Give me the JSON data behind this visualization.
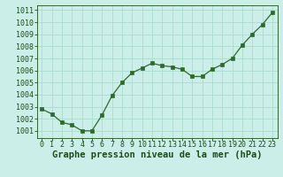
{
  "x": [
    0,
    1,
    2,
    3,
    4,
    5,
    6,
    7,
    8,
    9,
    10,
    11,
    12,
    13,
    14,
    15,
    16,
    17,
    18,
    19,
    20,
    21,
    22,
    23
  ],
  "y": [
    1002.8,
    1002.4,
    1001.7,
    1001.5,
    1001.0,
    1001.0,
    1002.3,
    1003.9,
    1005.0,
    1005.8,
    1006.2,
    1006.6,
    1006.4,
    1006.3,
    1006.1,
    1005.5,
    1005.5,
    1006.1,
    1006.5,
    1007.0,
    1008.1,
    1009.0,
    1009.8,
    1010.8
  ],
  "line_color": "#2d6a2d",
  "marker": "s",
  "marker_size": 2.5,
  "bg_color": "#cceee8",
  "grid_color": "#aaddcc",
  "xlabel": "Graphe pression niveau de la mer (hPa)",
  "xlabel_color": "#1a4d1a",
  "xlabel_fontsize": 7.5,
  "tick_color": "#1a4d1a",
  "tick_fontsize": 6,
  "ylim": [
    1000.4,
    1011.4
  ],
  "yticks": [
    1001,
    1002,
    1003,
    1004,
    1005,
    1006,
    1007,
    1008,
    1009,
    1010,
    1011
  ],
  "xlim": [
    -0.5,
    23.5
  ],
  "xticks": [
    0,
    1,
    2,
    3,
    4,
    5,
    6,
    7,
    8,
    9,
    10,
    11,
    12,
    13,
    14,
    15,
    16,
    17,
    18,
    19,
    20,
    21,
    22,
    23
  ]
}
